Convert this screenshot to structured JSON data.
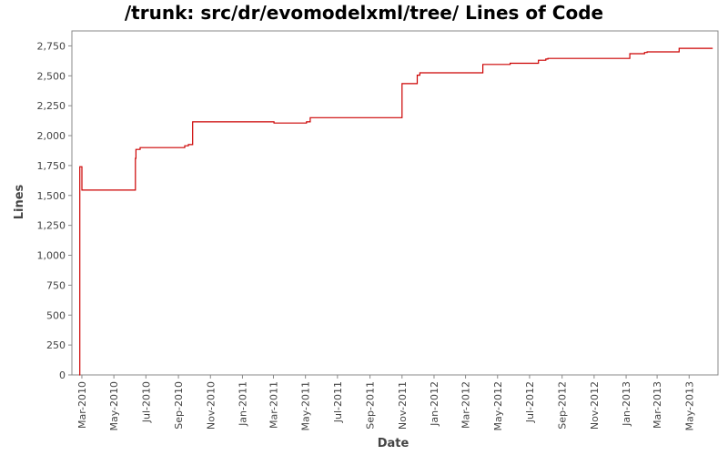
{
  "chart_data": {
    "type": "line",
    "title": "/trunk: src/dr/evomodelxml/tree/ Lines of Code",
    "xlabel": "Date",
    "ylabel": "Lines",
    "ylim": [
      0,
      2875
    ],
    "xlim": [
      "2010-02-10",
      "2013-06-25"
    ],
    "y_ticks": [
      0,
      250,
      500,
      750,
      1000,
      1250,
      1500,
      1750,
      2000,
      2250,
      2500,
      2750
    ],
    "y_tick_labels": [
      "0",
      "250",
      "500",
      "750",
      "1,000",
      "1,250",
      "1,500",
      "1,750",
      "2,000",
      "2,250",
      "2,500",
      "2,750"
    ],
    "x_ticks": [
      "2010-03-01",
      "2010-05-01",
      "2010-07-01",
      "2010-09-01",
      "2010-11-01",
      "2011-01-01",
      "2011-03-01",
      "2011-05-01",
      "2011-07-01",
      "2011-09-01",
      "2011-11-01",
      "2012-01-01",
      "2012-03-01",
      "2012-05-01",
      "2012-07-01",
      "2012-09-01",
      "2012-11-01",
      "2013-01-01",
      "2013-03-01",
      "2013-05-01"
    ],
    "x_tick_labels": [
      "Mar-2010",
      "May-2010",
      "Jul-2010",
      "Sep-2010",
      "Nov-2010",
      "Jan-2011",
      "Mar-2011",
      "May-2011",
      "Jul-2011",
      "Sep-2011",
      "Nov-2011",
      "Jan-2012",
      "Mar-2012",
      "May-2012",
      "Jul-2012",
      "Sep-2012",
      "Nov-2012",
      "Jan-2013",
      "Mar-2013",
      "May-2013"
    ],
    "grid": false,
    "step": true,
    "series": [
      {
        "color": "#cc0000",
        "points": [
          [
            "2010-02-24",
            0
          ],
          [
            "2010-02-25",
            1740
          ],
          [
            "2010-02-28",
            1740
          ],
          [
            "2010-03-01",
            1545
          ],
          [
            "2010-06-10",
            1545
          ],
          [
            "2010-06-11",
            1810
          ],
          [
            "2010-06-12",
            1885
          ],
          [
            "2010-06-20",
            1900
          ],
          [
            "2010-09-10",
            1900
          ],
          [
            "2010-09-13",
            1915
          ],
          [
            "2010-09-20",
            1925
          ],
          [
            "2010-09-28",
            2115
          ],
          [
            "2011-03-01",
            2115
          ],
          [
            "2011-03-02",
            2105
          ],
          [
            "2011-05-01",
            2105
          ],
          [
            "2011-05-03",
            2115
          ],
          [
            "2011-05-10",
            2150
          ],
          [
            "2011-10-30",
            2150
          ],
          [
            "2011-11-01",
            2435
          ],
          [
            "2011-11-28",
            2435
          ],
          [
            "2011-11-30",
            2505
          ],
          [
            "2011-12-05",
            2525
          ],
          [
            "2012-04-01",
            2525
          ],
          [
            "2012-04-03",
            2595
          ],
          [
            "2012-05-20",
            2595
          ],
          [
            "2012-05-25",
            2605
          ],
          [
            "2012-07-15",
            2605
          ],
          [
            "2012-07-18",
            2630
          ],
          [
            "2012-08-01",
            2640
          ],
          [
            "2012-08-05",
            2645
          ],
          [
            "2013-01-06",
            2645
          ],
          [
            "2013-01-08",
            2685
          ],
          [
            "2013-02-05",
            2695
          ],
          [
            "2013-02-10",
            2700
          ],
          [
            "2013-04-10",
            2700
          ],
          [
            "2013-04-12",
            2730
          ],
          [
            "2013-06-15",
            2730
          ]
        ]
      }
    ]
  }
}
